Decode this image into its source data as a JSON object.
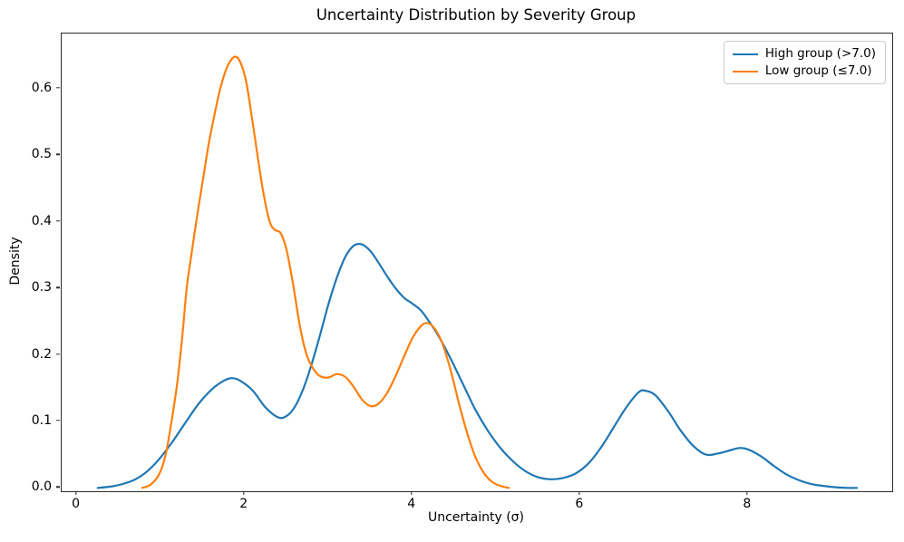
{
  "chart_data": {
    "type": "line",
    "title": "Uncertainty Distribution by Severity Group",
    "xlabel": "Uncertainty (σ)",
    "ylabel": "Density",
    "grid": false,
    "legend_position": "upper right",
    "xlim": [
      -0.18,
      9.72
    ],
    "ylim": [
      -0.005,
      0.683
    ],
    "x_ticks": [
      {
        "value": 0,
        "label": "0"
      },
      {
        "value": 2,
        "label": "2"
      },
      {
        "value": 4,
        "label": "4"
      },
      {
        "value": 6,
        "label": "6"
      },
      {
        "value": 8,
        "label": "8"
      }
    ],
    "y_ticks": [
      {
        "value": 0.0,
        "label": "0.0"
      },
      {
        "value": 0.1,
        "label": "0.1"
      },
      {
        "value": 0.2,
        "label": "0.2"
      },
      {
        "value": 0.3,
        "label": "0.3"
      },
      {
        "value": 0.4,
        "label": "0.4"
      },
      {
        "value": 0.5,
        "label": "0.5"
      },
      {
        "value": 0.6,
        "label": "0.6"
      }
    ],
    "series": [
      {
        "key": "high-series",
        "name": "High group (>7.0)",
        "color": "#1f77b4",
        "points": [
          [
            0.25,
            0.0
          ],
          [
            0.4,
            0.002
          ],
          [
            0.55,
            0.006
          ],
          [
            0.7,
            0.013
          ],
          [
            0.85,
            0.026
          ],
          [
            1.0,
            0.046
          ],
          [
            1.15,
            0.071
          ],
          [
            1.3,
            0.099
          ],
          [
            1.45,
            0.126
          ],
          [
            1.6,
            0.147
          ],
          [
            1.75,
            0.161
          ],
          [
            1.85,
            0.165
          ],
          [
            1.95,
            0.161
          ],
          [
            2.1,
            0.146
          ],
          [
            2.25,
            0.121
          ],
          [
            2.4,
            0.106
          ],
          [
            2.5,
            0.108
          ],
          [
            2.6,
            0.122
          ],
          [
            2.7,
            0.149
          ],
          [
            2.8,
            0.186
          ],
          [
            2.9,
            0.23
          ],
          [
            3.0,
            0.276
          ],
          [
            3.1,
            0.316
          ],
          [
            3.2,
            0.347
          ],
          [
            3.3,
            0.364
          ],
          [
            3.4,
            0.366
          ],
          [
            3.5,
            0.356
          ],
          [
            3.6,
            0.338
          ],
          [
            3.7,
            0.318
          ],
          [
            3.8,
            0.3
          ],
          [
            3.9,
            0.286
          ],
          [
            4.0,
            0.277
          ],
          [
            4.1,
            0.267
          ],
          [
            4.2,
            0.25
          ],
          [
            4.3,
            0.231
          ],
          [
            4.45,
            0.196
          ],
          [
            4.6,
            0.157
          ],
          [
            4.75,
            0.118
          ],
          [
            4.9,
            0.086
          ],
          [
            5.05,
            0.06
          ],
          [
            5.2,
            0.04
          ],
          [
            5.35,
            0.025
          ],
          [
            5.5,
            0.016
          ],
          [
            5.65,
            0.013
          ],
          [
            5.8,
            0.015
          ],
          [
            5.95,
            0.022
          ],
          [
            6.1,
            0.037
          ],
          [
            6.25,
            0.061
          ],
          [
            6.4,
            0.091
          ],
          [
            6.55,
            0.121
          ],
          [
            6.7,
            0.144
          ],
          [
            6.78,
            0.146
          ],
          [
            6.9,
            0.139
          ],
          [
            7.05,
            0.115
          ],
          [
            7.2,
            0.086
          ],
          [
            7.35,
            0.063
          ],
          [
            7.5,
            0.05
          ],
          [
            7.65,
            0.052
          ],
          [
            7.8,
            0.057
          ],
          [
            7.9,
            0.06
          ],
          [
            8.0,
            0.058
          ],
          [
            8.15,
            0.048
          ],
          [
            8.3,
            0.034
          ],
          [
            8.45,
            0.021
          ],
          [
            8.6,
            0.012
          ],
          [
            8.75,
            0.006
          ],
          [
            8.9,
            0.003
          ],
          [
            9.05,
            0.001
          ],
          [
            9.2,
            0.0
          ],
          [
            9.3,
            0.0
          ]
        ]
      },
      {
        "key": "low-series",
        "name": "Low group (≤7.0)",
        "color": "#ff7f0e",
        "points": [
          [
            0.78,
            0.0
          ],
          [
            0.88,
            0.005
          ],
          [
            0.98,
            0.02
          ],
          [
            1.06,
            0.05
          ],
          [
            1.13,
            0.1
          ],
          [
            1.2,
            0.16
          ],
          [
            1.26,
            0.23
          ],
          [
            1.31,
            0.3
          ],
          [
            1.36,
            0.345
          ],
          [
            1.43,
            0.405
          ],
          [
            1.5,
            0.46
          ],
          [
            1.57,
            0.515
          ],
          [
            1.64,
            0.56
          ],
          [
            1.71,
            0.6
          ],
          [
            1.79,
            0.632
          ],
          [
            1.88,
            0.648
          ],
          [
            1.95,
            0.64
          ],
          [
            2.02,
            0.61
          ],
          [
            2.09,
            0.555
          ],
          [
            2.16,
            0.495
          ],
          [
            2.23,
            0.44
          ],
          [
            2.3,
            0.4
          ],
          [
            2.36,
            0.388
          ],
          [
            2.43,
            0.383
          ],
          [
            2.5,
            0.358
          ],
          [
            2.58,
            0.305
          ],
          [
            2.66,
            0.243
          ],
          [
            2.74,
            0.2
          ],
          [
            2.82,
            0.179
          ],
          [
            2.9,
            0.168
          ],
          [
            3.0,
            0.166
          ],
          [
            3.1,
            0.171
          ],
          [
            3.2,
            0.167
          ],
          [
            3.3,
            0.152
          ],
          [
            3.4,
            0.133
          ],
          [
            3.5,
            0.123
          ],
          [
            3.6,
            0.127
          ],
          [
            3.7,
            0.143
          ],
          [
            3.8,
            0.168
          ],
          [
            3.9,
            0.197
          ],
          [
            4.0,
            0.225
          ],
          [
            4.1,
            0.243
          ],
          [
            4.17,
            0.248
          ],
          [
            4.25,
            0.242
          ],
          [
            4.35,
            0.22
          ],
          [
            4.45,
            0.18
          ],
          [
            4.55,
            0.13
          ],
          [
            4.65,
            0.084
          ],
          [
            4.75,
            0.047
          ],
          [
            4.85,
            0.023
          ],
          [
            4.95,
            0.009
          ],
          [
            5.05,
            0.003
          ],
          [
            5.15,
            0.0
          ]
        ]
      }
    ]
  }
}
